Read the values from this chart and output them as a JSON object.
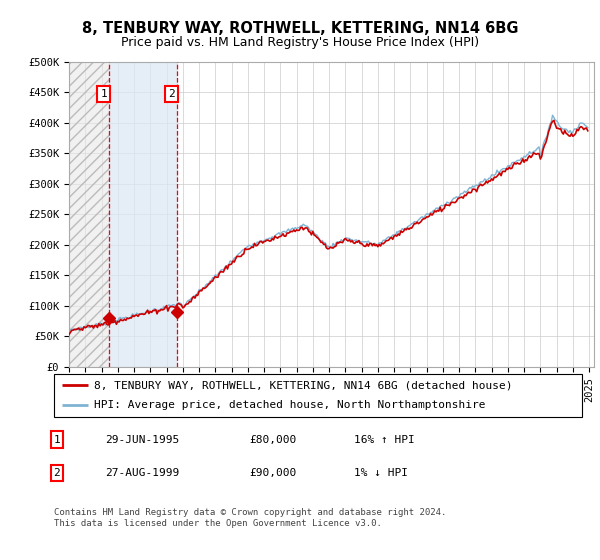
{
  "title": "8, TENBURY WAY, ROTHWELL, KETTERING, NN14 6BG",
  "subtitle": "Price paid vs. HM Land Registry's House Price Index (HPI)",
  "ylim": [
    0,
    500000
  ],
  "yticks": [
    0,
    50000,
    100000,
    150000,
    200000,
    250000,
    300000,
    350000,
    400000,
    450000,
    500000
  ],
  "ytick_labels": [
    "£0",
    "£50K",
    "£100K",
    "£150K",
    "£200K",
    "£250K",
    "£300K",
    "£350K",
    "£400K",
    "£450K",
    "£500K"
  ],
  "hpi_color": "#7fb3d3",
  "price_color": "#cc0000",
  "bg_color": "#ffffff",
  "grid_color": "#cccccc",
  "hatch_color": "#cccccc",
  "shade_color": "#dae8f5",
  "sale1_date_num": 1995.49,
  "sale1_price": 80000,
  "sale1_label": "1",
  "sale2_date_num": 1999.65,
  "sale2_price": 90000,
  "sale2_label": "2",
  "legend_line1": "8, TENBURY WAY, ROTHWELL, KETTERING, NN14 6BG (detached house)",
  "legend_line2": "HPI: Average price, detached house, North Northamptonshire",
  "table_row1": [
    "1",
    "29-JUN-1995",
    "£80,000",
    "16% ↑ HPI"
  ],
  "table_row2": [
    "2",
    "27-AUG-1999",
    "£90,000",
    "1% ↓ HPI"
  ],
  "footnote": "Contains HM Land Registry data © Crown copyright and database right 2024.\nThis data is licensed under the Open Government Licence v3.0.",
  "title_fontsize": 10.5,
  "subtitle_fontsize": 9,
  "tick_fontsize": 7.5,
  "legend_fontsize": 8,
  "table_fontsize": 8,
  "footnote_fontsize": 6.5
}
